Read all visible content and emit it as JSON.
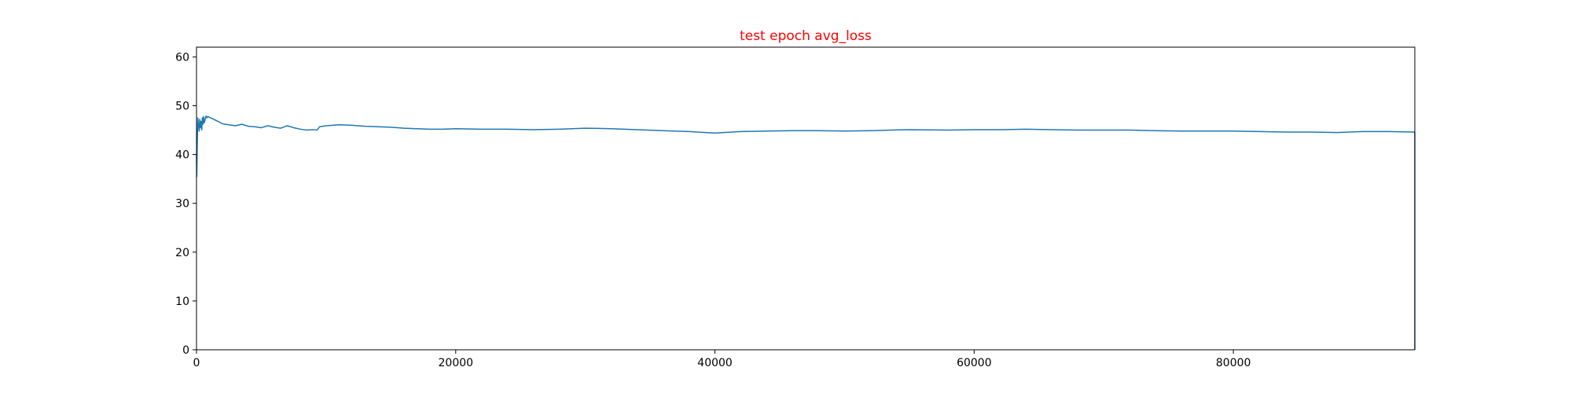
{
  "chart_data": {
    "type": "line",
    "title": "test epoch avg_loss",
    "title_color": "#ff0000",
    "line_color": "#1f77b4",
    "xlabel": "",
    "ylabel": "",
    "xlim": [
      0,
      94000
    ],
    "ylim": [
      0,
      62
    ],
    "x_ticks": [
      0,
      20000,
      40000,
      60000,
      80000
    ],
    "x_tick_labels": [
      "0",
      "20000",
      "40000",
      "60000",
      "80000"
    ],
    "y_ticks": [
      0,
      10,
      20,
      30,
      40,
      50,
      60
    ],
    "y_tick_labels": [
      "0",
      "10",
      "20",
      "30",
      "40",
      "50",
      "60"
    ],
    "grid": false,
    "series": [
      {
        "x": [
          0,
          20,
          40,
          60,
          80,
          100,
          150,
          200,
          250,
          300,
          350,
          400,
          450,
          500,
          550,
          600,
          650,
          700,
          750,
          800,
          900,
          1000,
          1200,
          1500,
          1800,
          2000,
          2500,
          3000,
          3500,
          4000,
          4500,
          5000,
          5500,
          6000,
          6500,
          7000,
          7500,
          8000,
          8500,
          9000,
          9300,
          9500,
          10000,
          11000,
          12000,
          13000,
          14000,
          15000,
          16000,
          17000,
          18000,
          19000,
          20000,
          22000,
          24000,
          26000,
          28000,
          30000,
          32000,
          34000,
          36000,
          38000,
          40000,
          42000,
          44000,
          46000,
          48000,
          50000,
          52000,
          55000,
          58000,
          60000,
          62000,
          64000,
          66000,
          68000,
          70000,
          72000,
          74000,
          76000,
          78000,
          80000,
          82000,
          84000,
          86000,
          88000,
          90000,
          92000,
          94000,
          94000
        ],
        "y": [
          40.0,
          35.5,
          39.0,
          42.0,
          45.0,
          47.5,
          46.0,
          44.8,
          47.2,
          45.5,
          46.8,
          45.0,
          47.5,
          46.2,
          47.8,
          46.5,
          47.0,
          47.6,
          47.9,
          47.5,
          47.8,
          47.6,
          47.4,
          47.0,
          46.6,
          46.3,
          46.1,
          45.9,
          46.2,
          45.8,
          45.7,
          45.5,
          45.9,
          45.6,
          45.4,
          45.9,
          45.5,
          45.2,
          45.0,
          45.1,
          45.0,
          45.7,
          45.9,
          46.1,
          46.0,
          45.8,
          45.7,
          45.6,
          45.4,
          45.3,
          45.2,
          45.2,
          45.3,
          45.2,
          45.2,
          45.1,
          45.2,
          45.4,
          45.3,
          45.1,
          44.9,
          44.7,
          44.4,
          44.7,
          44.8,
          44.9,
          44.9,
          44.8,
          44.9,
          45.1,
          45.0,
          45.1,
          45.1,
          45.2,
          45.1,
          45.0,
          45.0,
          45.0,
          44.9,
          44.8,
          44.8,
          44.8,
          44.7,
          44.6,
          44.6,
          44.5,
          44.7,
          44.7,
          44.6,
          0.0
        ]
      }
    ]
  }
}
